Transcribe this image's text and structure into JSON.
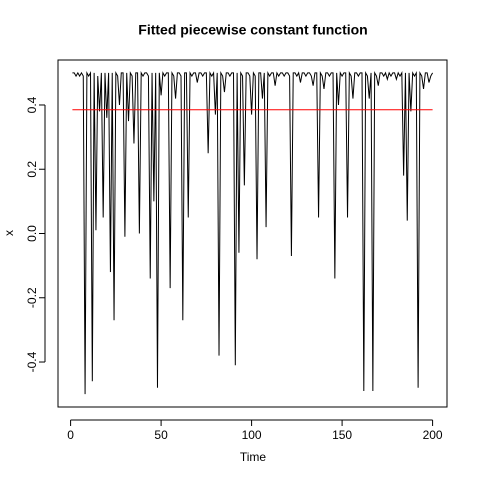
{
  "chart_data": {
    "type": "line",
    "title": "Fitted piecewise constant function",
    "x_label": "Time",
    "y_label": "x",
    "x": [
      1,
      2,
      3,
      4,
      5,
      6,
      7,
      8,
      9,
      10,
      11,
      12,
      13,
      14,
      15,
      16,
      17,
      18,
      19,
      20,
      21,
      22,
      23,
      24,
      25,
      26,
      27,
      28,
      29,
      30,
      31,
      32,
      33,
      34,
      35,
      36,
      37,
      38,
      39,
      40,
      41,
      42,
      43,
      44,
      45,
      46,
      47,
      48,
      49,
      50,
      51,
      52,
      53,
      54,
      55,
      56,
      57,
      58,
      59,
      60,
      61,
      62,
      63,
      64,
      65,
      66,
      67,
      68,
      69,
      70,
      71,
      72,
      73,
      74,
      75,
      76,
      77,
      78,
      79,
      80,
      81,
      82,
      83,
      84,
      85,
      86,
      87,
      88,
      89,
      90,
      91,
      92,
      93,
      94,
      95,
      96,
      97,
      98,
      99,
      100,
      101,
      102,
      103,
      104,
      105,
      106,
      107,
      108,
      109,
      110,
      111,
      112,
      113,
      114,
      115,
      116,
      117,
      118,
      119,
      120,
      121,
      122,
      123,
      124,
      125,
      126,
      127,
      128,
      129,
      130,
      131,
      132,
      133,
      134,
      135,
      136,
      137,
      138,
      139,
      140,
      141,
      142,
      143,
      144,
      145,
      146,
      147,
      148,
      149,
      150,
      151,
      152,
      153,
      154,
      155,
      156,
      157,
      158,
      159,
      160,
      161,
      162,
      163,
      164,
      165,
      166,
      167,
      168,
      169,
      170,
      171,
      172,
      173,
      174,
      175,
      176,
      177,
      178,
      179,
      180,
      181,
      182,
      183,
      184,
      185,
      186,
      187,
      188,
      189,
      190,
      191,
      192,
      193,
      194,
      195,
      196,
      197,
      198,
      199,
      200
    ],
    "series": [
      {
        "color": "#000000",
        "values": [
          0.5,
          0.5,
          0.49,
          0.5,
          0.49,
          0.5,
          0.49,
          -0.5,
          0.5,
          0.49,
          0.5,
          -0.46,
          0.5,
          0.01,
          0.49,
          0.38,
          0.5,
          0.05,
          0.5,
          0.36,
          0.5,
          -0.12,
          0.5,
          -0.27,
          0.5,
          0.49,
          0.4,
          0.5,
          0.5,
          -0.01,
          0.5,
          0.35,
          0.5,
          0.49,
          0.28,
          0.5,
          0.5,
          0.0,
          0.5,
          0.49,
          0.5,
          0.5,
          0.49,
          -0.14,
          0.5,
          0.1,
          0.5,
          -0.48,
          0.5,
          0.43,
          0.5,
          0.49,
          0.5,
          0.5,
          -0.17,
          0.5,
          0.49,
          0.42,
          0.5,
          0.5,
          0.49,
          -0.27,
          0.5,
          0.5,
          0.05,
          0.5,
          0.49,
          0.5,
          0.5,
          0.47,
          0.5,
          0.5,
          0.49,
          0.5,
          0.5,
          0.25,
          0.5,
          0.49,
          0.5,
          0.37,
          0.5,
          -0.38,
          0.5,
          0.49,
          0.44,
          0.5,
          0.5,
          0.49,
          0.5,
          0.5,
          -0.41,
          0.5,
          -0.06,
          0.5,
          0.49,
          0.15,
          0.5,
          0.5,
          0.49,
          0.37,
          0.5,
          0.49,
          -0.08,
          0.5,
          0.5,
          0.42,
          0.5,
          0.02,
          0.5,
          0.49,
          0.5,
          0.5,
          0.46,
          0.5,
          0.49,
          0.5,
          0.5,
          0.49,
          0.5,
          0.5,
          0.49,
          -0.07,
          0.5,
          0.5,
          0.49,
          0.5,
          0.47,
          0.5,
          0.5,
          0.49,
          0.5,
          0.5,
          0.49,
          0.46,
          0.5,
          0.5,
          0.05,
          0.5,
          0.49,
          0.45,
          0.5,
          0.5,
          0.49,
          0.5,
          0.5,
          -0.14,
          0.5,
          0.4,
          0.5,
          0.49,
          0.5,
          0.5,
          0.05,
          0.5,
          0.49,
          0.42,
          0.5,
          0.5,
          0.49,
          0.5,
          0.5,
          -0.49,
          0.5,
          0.49,
          0.42,
          0.5,
          -0.49,
          0.5,
          0.49,
          0.46,
          0.5,
          0.5,
          0.49,
          0.5,
          0.48,
          0.5,
          0.49,
          0.5,
          0.5,
          0.48,
          0.5,
          0.49,
          0.5,
          0.18,
          0.5,
          0.04,
          0.5,
          0.38,
          0.5,
          0.49,
          0.5,
          -0.48,
          0.5,
          0.49,
          0.45,
          0.5,
          0.5,
          0.47,
          0.49,
          0.5
        ]
      },
      {
        "color": "#ff0000",
        "x": [
          1,
          200
        ],
        "values": [
          0.385,
          0.385
        ]
      }
    ],
    "xlim": [
      -6.96,
      207.96
    ],
    "xticks": [
      0,
      50,
      100,
      150,
      200
    ],
    "ylim": [
      -0.54,
      0.54
    ],
    "yticks": [
      -0.4,
      -0.2,
      {
        "value": 0,
        "label": "0.0"
      },
      0.2,
      0.4
    ]
  }
}
